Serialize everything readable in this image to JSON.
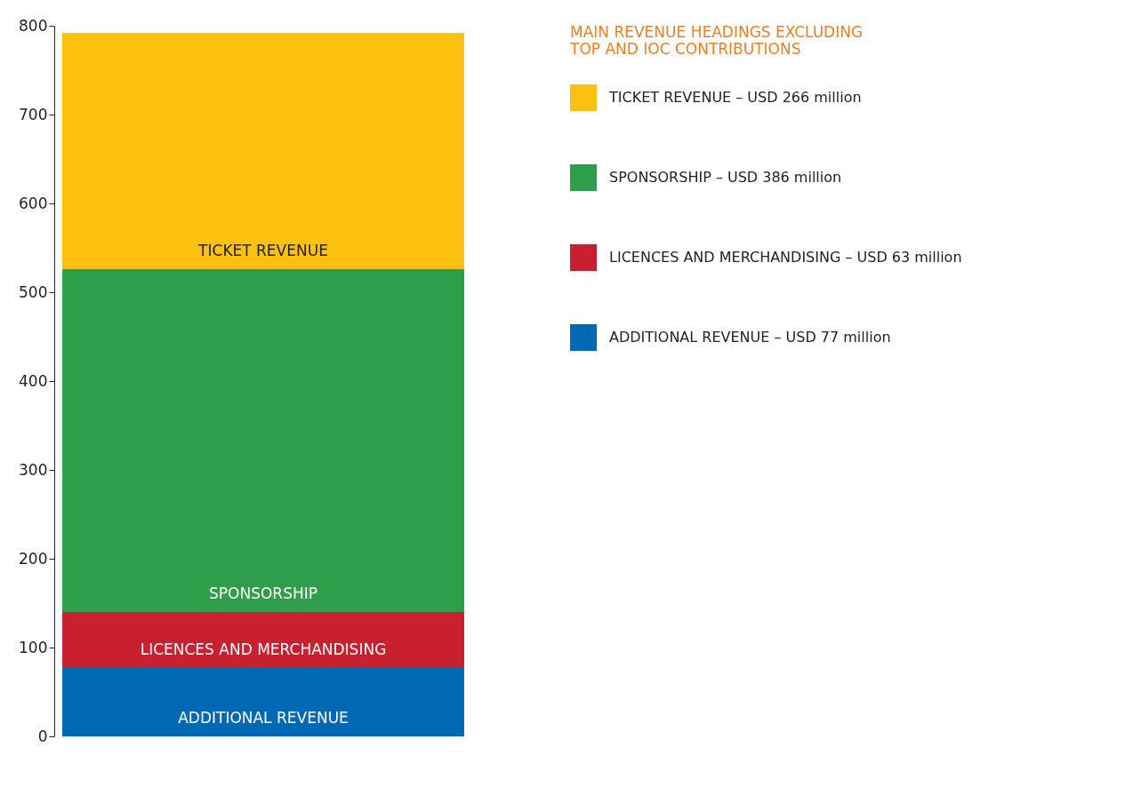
{
  "chart_data": {
    "type": "bar",
    "stacked": true,
    "legend_title": "MAIN REVENUE HEADINGS EXCLUDING TOP AND IOC CONTRIBUTIONS",
    "categories": [
      null
    ],
    "series": [
      {
        "name": "ADDITIONAL REVENUE – USD 77 million",
        "color": "#0068b4",
        "values": [
          77
        ]
      },
      {
        "name": "LICENCES AND MERCHANDISING – USD 63 million",
        "color": "#c8202f",
        "values": [
          63
        ]
      },
      {
        "name": "SPONSORSHIP – USD 386 million",
        "color": "#2f9e4a",
        "values": [
          386
        ]
      },
      {
        "name": "TICKET REVENUE – USD 266 million",
        "color": "#fcc20f",
        "values": [
          266
        ]
      }
    ],
    "annotations": [
      "ADDITIONAL REVENUE",
      "LICENCES AND MERCHANDISING",
      "SPONSORSHIP",
      "TICKET REVENUE"
    ],
    "ylim": [
      0,
      800
    ],
    "yticks": [
      0,
      100,
      200,
      300,
      400,
      500,
      600,
      700,
      800
    ],
    "grid": false,
    "legend": "right"
  }
}
